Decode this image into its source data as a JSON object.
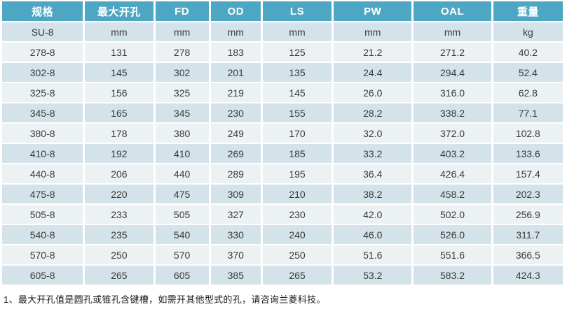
{
  "colors": {
    "header_bg": "#4ea7c2",
    "header_text": "#ffffff",
    "row_dark_bg": "#d4e2e9",
    "row_light_bg": "#ecf1f4",
    "body_text": "#3a3a3a"
  },
  "table": {
    "headers": [
      {
        "key": "spec",
        "label": "规格"
      },
      {
        "key": "max-bore",
        "label": "最大开孔"
      },
      {
        "key": "fd",
        "label": "FD"
      },
      {
        "key": "od",
        "label": "OD"
      },
      {
        "key": "ls",
        "label": "LS"
      },
      {
        "key": "pw",
        "label": "PW"
      },
      {
        "key": "oal",
        "label": "OAL"
      },
      {
        "key": "weight",
        "label": "重量"
      }
    ],
    "rows": [
      [
        "SU-8",
        "mm",
        "mm",
        "mm",
        "mm",
        "mm",
        "mm",
        "kg"
      ],
      [
        "278-8",
        "131",
        "278",
        "183",
        "125",
        "21.2",
        "271.2",
        "40.2"
      ],
      [
        "302-8",
        "145",
        "302",
        "201",
        "135",
        "24.4",
        "294.4",
        "52.4"
      ],
      [
        "325-8",
        "156",
        "325",
        "219",
        "145",
        "26.0",
        "316.0",
        "62.8"
      ],
      [
        "345-8",
        "165",
        "345",
        "230",
        "155",
        "28.2",
        "338.2",
        "77.1"
      ],
      [
        "380-8",
        "178",
        "380",
        "249",
        "170",
        "32.0",
        "372.0",
        "102.8"
      ],
      [
        "410-8",
        "192",
        "410",
        "269",
        "185",
        "33.2",
        "403.2",
        "133.6"
      ],
      [
        "440-8",
        "206",
        "440",
        "289",
        "195",
        "36.4",
        "426.4",
        "157.4"
      ],
      [
        "475-8",
        "220",
        "475",
        "309",
        "210",
        "38.2",
        "458.2",
        "202.3"
      ],
      [
        "505-8",
        "233",
        "505",
        "327",
        "230",
        "42.0",
        "502.0",
        "256.9"
      ],
      [
        "540-8",
        "235",
        "540",
        "330",
        "240",
        "46.0",
        "526.0",
        "311.7"
      ],
      [
        "570-8",
        "250",
        "570",
        "370",
        "250",
        "51.6",
        "551.6",
        "366.5"
      ],
      [
        "605-8",
        "265",
        "605",
        "385",
        "265",
        "53.2",
        "583.2",
        "424.3"
      ]
    ]
  },
  "footnote": "1、最大开孔值是圆孔或锥孔含键槽，如需开其他型式的孔，请咨询兰菱科技。"
}
